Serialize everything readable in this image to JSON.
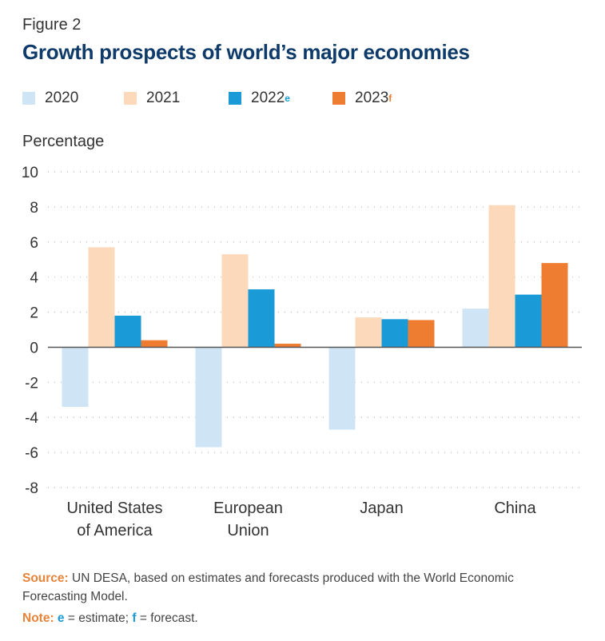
{
  "figure_label": "Figure 2",
  "title": "Growth prospects of world’s major economies",
  "legend": [
    {
      "label": "2020",
      "sup": "",
      "color": "#cfe5f6"
    },
    {
      "label": "2021",
      "sup": "",
      "color": "#fcd9bb"
    },
    {
      "label": "2022",
      "sup": "e",
      "color": "#1a9ad6"
    },
    {
      "label": "2023",
      "sup": "f",
      "color": "#ee7d31"
    }
  ],
  "chart_data": {
    "type": "bar",
    "ylabel": "Percentage",
    "ylim": [
      -8,
      10
    ],
    "yticks": [
      10,
      8,
      6,
      4,
      2,
      0,
      -2,
      -4,
      -6,
      -8
    ],
    "grid": "dotted horizontal",
    "legend_position": "top",
    "categories": [
      [
        "United States",
        "of America"
      ],
      [
        "European",
        "Union"
      ],
      [
        "Japan"
      ],
      [
        "China"
      ]
    ],
    "series": [
      {
        "name": "2020",
        "color": "#cfe5f6",
        "values": [
          -3.4,
          -5.7,
          -4.7,
          2.2
        ]
      },
      {
        "name": "2021",
        "color": "#fcd9bb",
        "values": [
          5.7,
          5.3,
          1.7,
          8.1
        ]
      },
      {
        "name": "2022",
        "color": "#1a9ad6",
        "values": [
          1.8,
          3.3,
          1.6,
          3.0
        ]
      },
      {
        "name": "2023",
        "color": "#ee7d31",
        "values": [
          0.4,
          0.2,
          1.55,
          4.8
        ]
      }
    ]
  },
  "source": {
    "label": "Source:",
    "text": "UN DESA, based on estimates and forecasts produced with the World Economic Forecasting Model."
  },
  "note": {
    "label": "Note:",
    "e_letter": "e",
    "e_text": "= estimate;",
    "f_letter": "f",
    "f_text": "= forecast."
  }
}
